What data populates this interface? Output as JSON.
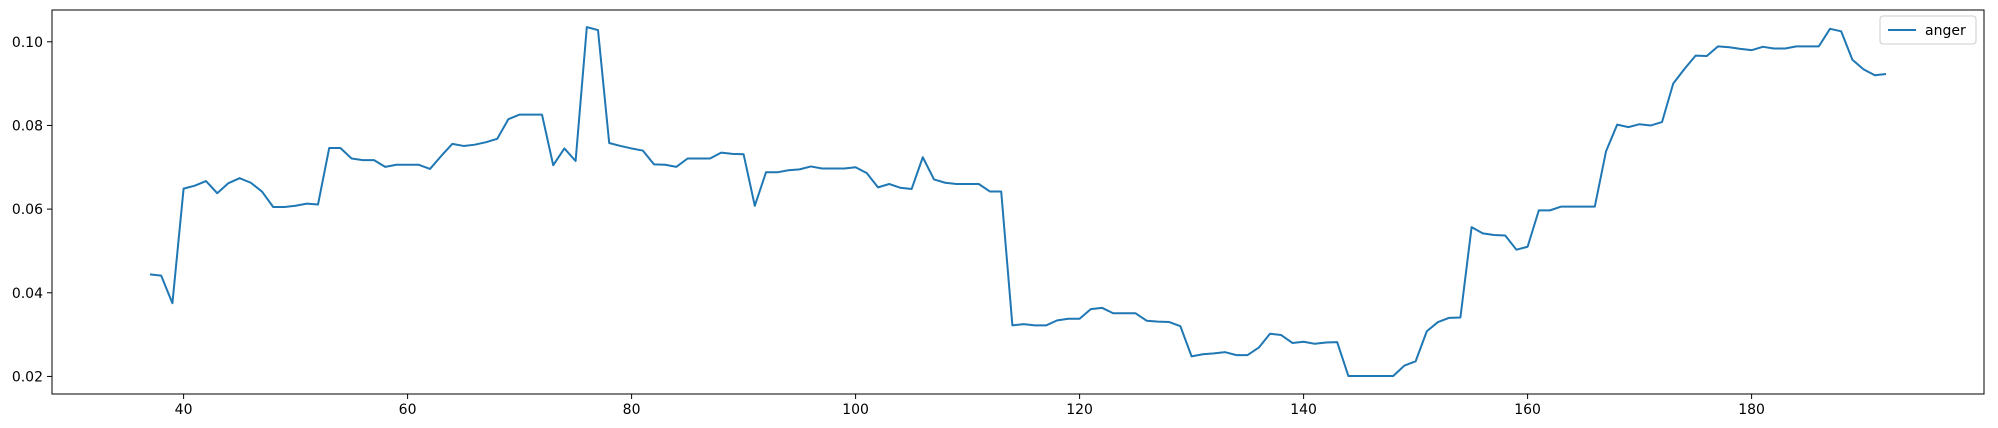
{
  "chart_data": {
    "type": "line",
    "title": "",
    "xlabel": "",
    "ylabel": "",
    "xlim": [
      28.25,
      200.75
    ],
    "ylim": [
      0.0158,
      0.1076
    ],
    "xticks": [
      40,
      60,
      80,
      100,
      120,
      140,
      160,
      180
    ],
    "yticks": [
      0.02,
      0.04,
      0.06,
      0.08,
      0.1
    ],
    "x_tick_labels": [
      "40",
      "60",
      "80",
      "100",
      "120",
      "140",
      "160",
      "180"
    ],
    "y_tick_labels": [
      "0.02",
      "0.04",
      "0.06",
      "0.08",
      "0.10"
    ],
    "grid": false,
    "legend_position": "top-right",
    "series": [
      {
        "name": "anger",
        "color": "#1f77b4",
        "x": [
          37,
          38,
          39,
          40,
          41,
          42,
          43,
          44,
          45,
          46,
          47,
          48,
          49,
          50,
          51,
          52,
          53,
          54,
          55,
          56,
          57,
          58,
          59,
          60,
          61,
          62,
          63,
          64,
          65,
          66,
          67,
          68,
          69,
          70,
          71,
          72,
          73,
          74,
          75,
          76,
          77,
          78,
          79,
          80,
          81,
          82,
          83,
          84,
          85,
          86,
          87,
          88,
          89,
          90,
          91,
          92,
          93,
          94,
          95,
          96,
          97,
          98,
          99,
          100,
          101,
          102,
          103,
          104,
          105,
          106,
          107,
          108,
          109,
          110,
          111,
          112,
          113,
          114,
          115,
          116,
          117,
          118,
          119,
          120,
          121,
          122,
          123,
          124,
          125,
          126,
          127,
          128,
          129,
          130,
          131,
          132,
          133,
          134,
          135,
          136,
          137,
          138,
          139,
          140,
          141,
          142,
          143,
          144,
          145,
          146,
          147,
          148,
          149,
          150,
          151,
          152,
          153,
          154,
          155,
          156,
          157,
          158,
          159,
          160,
          161,
          162,
          163,
          164,
          165,
          166,
          167,
          168,
          169,
          170,
          171,
          172,
          173,
          174,
          175,
          176,
          177,
          178,
          179,
          180,
          181,
          182,
          183,
          184,
          185,
          186,
          187,
          188,
          189,
          190,
          191,
          192
        ],
        "values": [
          0.0444,
          0.0441,
          0.0375,
          0.0649,
          0.0656,
          0.0667,
          0.0638,
          0.0662,
          0.0674,
          0.0663,
          0.0642,
          0.0605,
          0.0605,
          0.0608,
          0.0613,
          0.0611,
          0.0746,
          0.0746,
          0.0721,
          0.0717,
          0.0717,
          0.0701,
          0.0706,
          0.0706,
          0.0706,
          0.0696,
          0.0727,
          0.0756,
          0.0751,
          0.0754,
          0.076,
          0.0768,
          0.0815,
          0.0826,
          0.0826,
          0.0826,
          0.0705,
          0.0745,
          0.0715,
          0.1035,
          0.1028,
          0.0758,
          0.0751,
          0.0745,
          0.074,
          0.0707,
          0.0706,
          0.0701,
          0.0721,
          0.0721,
          0.0721,
          0.0735,
          0.0732,
          0.0731,
          0.0608,
          0.0688,
          0.0688,
          0.0693,
          0.0695,
          0.0702,
          0.0697,
          0.0697,
          0.0697,
          0.07,
          0.0686,
          0.0652,
          0.066,
          0.0651,
          0.0648,
          0.0724,
          0.0671,
          0.0663,
          0.066,
          0.066,
          0.066,
          0.0642,
          0.0642,
          0.0322,
          0.0325,
          0.0322,
          0.0322,
          0.0334,
          0.0338,
          0.0338,
          0.0361,
          0.0364,
          0.0351,
          0.0351,
          0.0351,
          0.0333,
          0.0331,
          0.033,
          0.032,
          0.0248,
          0.0253,
          0.0255,
          0.0258,
          0.0251,
          0.0251,
          0.0269,
          0.0302,
          0.0299,
          0.028,
          0.0283,
          0.0278,
          0.0281,
          0.0282,
          0.0201,
          0.0201,
          0.0201,
          0.0201,
          0.0201,
          0.0226,
          0.0236,
          0.0308,
          0.033,
          0.034,
          0.0341,
          0.0557,
          0.0542,
          0.0538,
          0.0537,
          0.0503,
          0.051,
          0.0597,
          0.0597,
          0.0606,
          0.0606,
          0.0606,
          0.0606,
          0.0738,
          0.0802,
          0.0796,
          0.0803,
          0.08,
          0.0808,
          0.09,
          0.0935,
          0.0967,
          0.0966,
          0.0989,
          0.0987,
          0.0983,
          0.098,
          0.0988,
          0.0984,
          0.0984,
          0.0989,
          0.0989,
          0.0989,
          0.1031,
          0.1025,
          0.0957,
          0.0934,
          0.092,
          0.0923
        ]
      }
    ]
  }
}
